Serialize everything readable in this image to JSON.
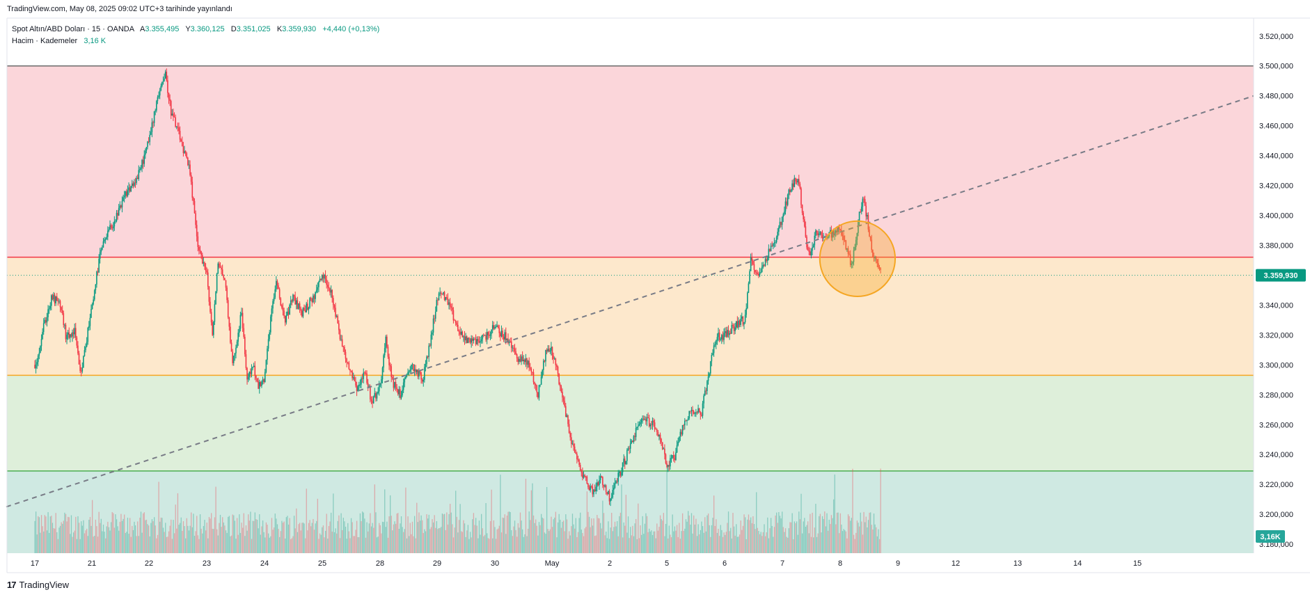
{
  "header": {
    "published": "TradingView.com, May 08, 2025 09:02 UTC+3 tarihinde yayınlandı"
  },
  "legend": {
    "symbol": "Spot Altın/ABD Doları · 15 · OANDA",
    "o_label": "A",
    "o_value": "3.355,495",
    "h_label": "Y",
    "h_value": "3.360,125",
    "l_label": "D",
    "l_value": "3.351,025",
    "c_label": "K",
    "c_value": "3.359,930",
    "change": "+4,440 (+0,13%)",
    "volume_label": "Hacim · Kademeler",
    "volume_value": "3,16 K"
  },
  "brand": {
    "logo_text": "17",
    "name": "TradingView"
  },
  "colors": {
    "up": "#089981",
    "down": "#f23645",
    "zone_top": "#fbd6da",
    "zone_mid": "#fde8cc",
    "zone_low": "#deefda",
    "zone_bottom": "#cfe9e2",
    "line_red": "#f23645",
    "line_orange": "#f5a623",
    "line_green": "#4caf50",
    "line_top": "#6b6b6b",
    "trend": "#787b86",
    "circle": "#f5a623"
  },
  "chart_data": {
    "type": "candlestick",
    "y_ticks": [
      "3.520,000",
      "3.500,000",
      "3.480,000",
      "3.460,000",
      "3.440,000",
      "3.420,000",
      "3.400,000",
      "3.380,000",
      "3.340,000",
      "3.320,000",
      "3.300,000",
      "3.280,000",
      "3.260,000",
      "3.240,000",
      "3.220,000",
      "3.200,000",
      "3.180,000"
    ],
    "y_tick_values": [
      3520,
      3500,
      3480,
      3460,
      3440,
      3420,
      3400,
      3380,
      3340,
      3320,
      3300,
      3280,
      3260,
      3240,
      3220,
      3200,
      3180
    ],
    "ylim": [
      3174,
      3532
    ],
    "x_ticks": [
      "17",
      "21",
      "22",
      "23",
      "24",
      "25",
      "28",
      "29",
      "30",
      "May",
      "2",
      "5",
      "6",
      "7",
      "8",
      "9",
      "12",
      "13",
      "14",
      "15"
    ],
    "x_tick_index": [
      0,
      1,
      2,
      3,
      4,
      5,
      6,
      7,
      8,
      9,
      10,
      11,
      12,
      13,
      14,
      15,
      16,
      17,
      18,
      19
    ],
    "levels": {
      "top": 3500,
      "red": 3372,
      "orange": 3293,
      "green": 3229
    },
    "trendline": {
      "start": [
        -0.5,
        3205
      ],
      "end": [
        21.4,
        3486
      ]
    },
    "circle": {
      "x": 14.3,
      "y": 3371,
      "radius_value": 12
    },
    "last_price": {
      "value": 3359.93,
      "label": "3.359,930"
    },
    "volume_badge": "3,16K",
    "price_anchors": [
      [
        0.0,
        3300
      ],
      [
        0.08,
        3310
      ],
      [
        0.15,
        3325
      ],
      [
        0.3,
        3345
      ],
      [
        0.45,
        3340
      ],
      [
        0.55,
        3318
      ],
      [
        0.7,
        3322
      ],
      [
        0.8,
        3292
      ],
      [
        0.9,
        3315
      ],
      [
        1.0,
        3340
      ],
      [
        1.15,
        3375
      ],
      [
        1.3,
        3390
      ],
      [
        1.45,
        3400
      ],
      [
        1.6,
        3415
      ],
      [
        1.8,
        3425
      ],
      [
        2.0,
        3450
      ],
      [
        2.15,
        3480
      ],
      [
        2.28,
        3495
      ],
      [
        2.38,
        3470
      ],
      [
        2.55,
        3450
      ],
      [
        2.7,
        3430
      ],
      [
        2.85,
        3380
      ],
      [
        3.0,
        3360
      ],
      [
        3.1,
        3320
      ],
      [
        3.2,
        3370
      ],
      [
        3.32,
        3355
      ],
      [
        3.45,
        3300
      ],
      [
        3.6,
        3335
      ],
      [
        3.7,
        3290
      ],
      [
        3.8,
        3300
      ],
      [
        3.9,
        3285
      ],
      [
        4.0,
        3290
      ],
      [
        4.1,
        3330
      ],
      [
        4.2,
        3355
      ],
      [
        4.35,
        3330
      ],
      [
        4.5,
        3345
      ],
      [
        4.65,
        3335
      ],
      [
        4.85,
        3345
      ],
      [
        5.0,
        3360
      ],
      [
        5.15,
        3350
      ],
      [
        5.3,
        3320
      ],
      [
        5.45,
        3300
      ],
      [
        5.6,
        3285
      ],
      [
        5.75,
        3295
      ],
      [
        5.85,
        3275
      ],
      [
        6.0,
        3285
      ],
      [
        6.1,
        3320
      ],
      [
        6.2,
        3290
      ],
      [
        6.35,
        3280
      ],
      [
        6.55,
        3300
      ],
      [
        6.75,
        3290
      ],
      [
        6.9,
        3320
      ],
      [
        7.0,
        3345
      ],
      [
        7.1,
        3348
      ],
      [
        7.25,
        3335
      ],
      [
        7.4,
        3320
      ],
      [
        7.6,
        3315
      ],
      [
        7.8,
        3318
      ],
      [
        8.0,
        3325
      ],
      [
        8.2,
        3318
      ],
      [
        8.4,
        3305
      ],
      [
        8.6,
        3300
      ],
      [
        8.75,
        3280
      ],
      [
        8.9,
        3310
      ],
      [
        9.0,
        3310
      ],
      [
        9.15,
        3285
      ],
      [
        9.3,
        3255
      ],
      [
        9.4,
        3240
      ],
      [
        9.55,
        3225
      ],
      [
        9.7,
        3215
      ],
      [
        9.85,
        3225
      ],
      [
        10.0,
        3210
      ],
      [
        10.15,
        3225
      ],
      [
        10.3,
        3240
      ],
      [
        10.45,
        3255
      ],
      [
        10.6,
        3265
      ],
      [
        10.75,
        3260
      ],
      [
        10.9,
        3250
      ],
      [
        11.0,
        3232
      ],
      [
        11.15,
        3240
      ],
      [
        11.3,
        3262
      ],
      [
        11.45,
        3270
      ],
      [
        11.6,
        3268
      ],
      [
        11.75,
        3300
      ],
      [
        11.85,
        3318
      ],
      [
        12.0,
        3320
      ],
      [
        12.15,
        3325
      ],
      [
        12.28,
        3330
      ],
      [
        12.35,
        3328
      ],
      [
        12.45,
        3370
      ],
      [
        12.6,
        3360
      ],
      [
        12.75,
        3375
      ],
      [
        12.9,
        3385
      ],
      [
        13.0,
        3400
      ],
      [
        13.15,
        3420
      ],
      [
        13.28,
        3425
      ],
      [
        13.35,
        3400
      ],
      [
        13.45,
        3372
      ],
      [
        13.6,
        3390
      ],
      [
        13.75,
        3385
      ],
      [
        13.85,
        3388
      ],
      [
        14.0,
        3390
      ],
      [
        14.1,
        3380
      ],
      [
        14.2,
        3365
      ],
      [
        14.32,
        3398
      ],
      [
        14.4,
        3410
      ],
      [
        14.48,
        3395
      ],
      [
        14.55,
        3375
      ],
      [
        14.62,
        3368
      ],
      [
        14.7,
        3362
      ]
    ]
  }
}
